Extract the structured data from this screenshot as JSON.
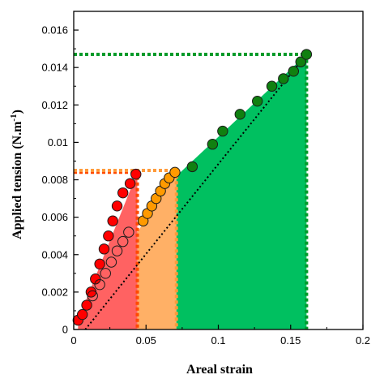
{
  "chart_data": {
    "type": "scatter",
    "xlabel": "Areal strain",
    "ylabel_main": "Applied tension (N.m",
    "ylabel_sup": "-1",
    "ylabel_close": ")",
    "xlim": [
      0,
      0.2
    ],
    "ylim": [
      0,
      0.017
    ],
    "x_ticks": [
      0,
      0.05,
      0.1,
      0.15,
      0.2
    ],
    "x_tick_labels": [
      "0",
      "0.05",
      "0.1",
      "0.15",
      "0.2"
    ],
    "y_ticks": [
      0,
      0.002,
      0.004,
      0.006,
      0.008,
      0.01,
      0.012,
      0.014,
      0.016
    ],
    "y_tick_labels": [
      "0",
      "0.002",
      "0.004",
      "0.006",
      "0.008",
      "0.01",
      "0.012",
      "0.014",
      "0.016"
    ],
    "regions": [
      {
        "name": "red",
        "color": "#ff6262",
        "x_start": 0.003,
        "x_end": 0.044,
        "y_start": 0.0005,
        "y_end": 0.0084
      },
      {
        "name": "orange",
        "color": "#ffb066",
        "x_start": 0.044,
        "x_end": 0.071,
        "y_start": 0.0052,
        "y_end": 0.0084
      },
      {
        "name": "green",
        "color": "#00c060",
        "x_start": 0.071,
        "x_end": 0.161,
        "y_start": 0.0082,
        "y_end": 0.0147
      }
    ],
    "dotted_lines": [
      {
        "color": "#ff4a00",
        "points": [
          [
            0,
            0.0084
          ],
          [
            0.044,
            0.0084
          ],
          [
            0.044,
            0
          ]
        ]
      },
      {
        "color": "#ff9a3a",
        "points": [
          [
            0,
            0.0085
          ],
          [
            0.071,
            0.0085
          ],
          [
            0.071,
            0
          ]
        ]
      },
      {
        "color": "#009a2a",
        "points": [
          [
            0,
            0.0147
          ],
          [
            0.161,
            0.0147
          ],
          [
            0.161,
            0
          ]
        ]
      }
    ],
    "fit_line": {
      "color": "#000000",
      "points": [
        [
          0.008,
          0
        ],
        [
          0.161,
          0.0147
        ]
      ]
    },
    "series": [
      {
        "fill": "#ff0000",
        "points": [
          [
            0.003,
            0.0005
          ],
          [
            0.006,
            0.0008
          ],
          [
            0.009,
            0.0013
          ],
          [
            0.012,
            0.002
          ],
          [
            0.015,
            0.0027
          ],
          [
            0.018,
            0.0035
          ],
          [
            0.021,
            0.0043
          ],
          [
            0.024,
            0.005
          ],
          [
            0.027,
            0.0058
          ],
          [
            0.03,
            0.0066
          ],
          [
            0.034,
            0.0073
          ],
          [
            0.039,
            0.0078
          ],
          [
            0.043,
            0.0083
          ]
        ]
      },
      {
        "fill": "none",
        "points": [
          [
            0.013,
            0.0018
          ],
          [
            0.018,
            0.0024
          ],
          [
            0.022,
            0.003
          ],
          [
            0.026,
            0.0036
          ],
          [
            0.03,
            0.0042
          ],
          [
            0.034,
            0.0047
          ],
          [
            0.038,
            0.0052
          ]
        ]
      },
      {
        "fill": "#ff9a00",
        "points": [
          [
            0.048,
            0.0058
          ],
          [
            0.051,
            0.0062
          ],
          [
            0.054,
            0.0066
          ],
          [
            0.057,
            0.007
          ],
          [
            0.06,
            0.0074
          ],
          [
            0.063,
            0.0078
          ],
          [
            0.066,
            0.0081
          ],
          [
            0.07,
            0.0084
          ]
        ]
      },
      {
        "fill": "#108010",
        "points": [
          [
            0.082,
            0.0087
          ],
          [
            0.096,
            0.0099
          ],
          [
            0.103,
            0.0106
          ],
          [
            0.115,
            0.0115
          ],
          [
            0.127,
            0.0122
          ],
          [
            0.137,
            0.013
          ],
          [
            0.145,
            0.0134
          ],
          [
            0.152,
            0.0138
          ],
          [
            0.157,
            0.0143
          ],
          [
            0.161,
            0.0147
          ]
        ]
      }
    ]
  }
}
